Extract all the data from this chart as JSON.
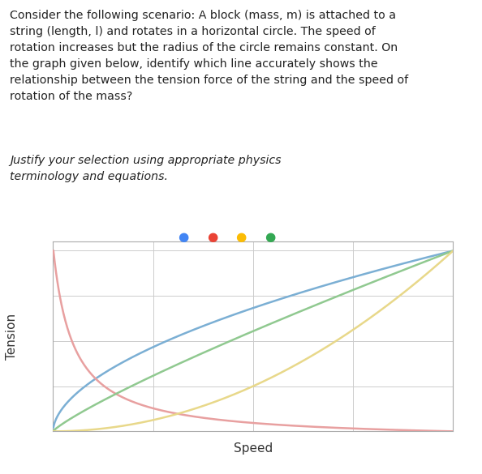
{
  "title_text_normal": "Consider the following scenario: A block (mass, m) is attached to a\nstring (length, l) and rotates in a horizontal circle. The speed of\nrotation increases but the radius of the circle remains constant. On\nthe graph given below, identify which line accurately shows the\nrelationship between the tension force of the string and the speed of\nrotation of the mass? ",
  "title_text_italic": "Justify your selection using appropriate physics\nterminology and equations.",
  "xlabel": "Speed",
  "ylabel": "Tension",
  "background_color": "#ffffff",
  "grid_color": "#cccccc",
  "dot_colors": [
    "#4285F4",
    "#EA4335",
    "#FBBC05",
    "#34A853"
  ],
  "line_colors": {
    "blue": "#7bafd4",
    "red": "#e8a0a0",
    "green": "#90c990",
    "yellow": "#e8d88a"
  },
  "figsize": [
    5.94,
    5.85
  ],
  "dpi": 100
}
